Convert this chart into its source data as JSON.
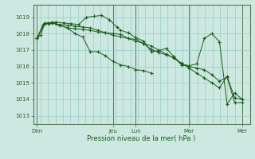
{
  "background_color": "#cce8e0",
  "grid_color": "#99cccc",
  "line_color": "#1a5c1a",
  "title": "Pression niveau de la mer( hPa )",
  "ylim": [
    1012.5,
    1019.75
  ],
  "yticks": [
    1013,
    1014,
    1015,
    1016,
    1017,
    1018,
    1019
  ],
  "xtick_labels": [
    "Dim",
    "Jeu",
    "Lun",
    "Mar",
    "Mer"
  ],
  "xtick_positions": [
    0,
    10,
    13,
    20,
    27
  ],
  "day_lines_x": [
    0,
    10,
    13,
    20,
    27
  ],
  "series": [
    {
      "x": [
        0,
        0.5,
        1,
        1.5,
        2,
        2.5,
        3,
        4,
        5,
        6,
        7,
        8,
        9,
        10,
        11,
        12,
        13,
        14,
        15,
        16,
        17,
        18,
        19,
        20,
        21,
        22,
        23,
        24,
        25,
        26,
        27
      ],
      "y": [
        1017.7,
        1017.9,
        1018.6,
        1018.6,
        1018.7,
        1018.6,
        1018.55,
        1018.5,
        1018.45,
        1018.4,
        1018.35,
        1018.2,
        1018.05,
        1017.9,
        1017.8,
        1017.7,
        1017.55,
        1017.4,
        1017.25,
        1017.0,
        1016.75,
        1016.5,
        1016.2,
        1015.9,
        1015.6,
        1015.3,
        1015.0,
        1014.7,
        1015.4,
        1014.1,
        1014.0
      ]
    },
    {
      "x": [
        0,
        0.8,
        1.5,
        2.5,
        3.5,
        4.5,
        5.5,
        6.5,
        7.5,
        8.5,
        9.5,
        10.5,
        11,
        12,
        13,
        14,
        15,
        16,
        17,
        18,
        19,
        20,
        21,
        22,
        23,
        24,
        25,
        26,
        27
      ],
      "y": [
        1017.7,
        1018.55,
        1018.65,
        1018.7,
        1018.65,
        1018.6,
        1018.55,
        1019.0,
        1019.05,
        1019.1,
        1018.85,
        1018.4,
        1018.2,
        1018.05,
        1017.75,
        1017.55,
        1016.9,
        1016.95,
        1017.1,
        1016.6,
        1016.15,
        1016.05,
        1016.15,
        1017.7,
        1018.0,
        1017.5,
        1013.7,
        1014.4,
        1014.0
      ]
    },
    {
      "x": [
        0,
        1,
        2,
        3,
        4,
        5,
        6,
        7,
        8,
        9,
        10,
        11,
        12,
        13,
        14,
        15
      ],
      "y": [
        1017.7,
        1018.65,
        1018.65,
        1018.5,
        1018.35,
        1018.0,
        1017.8,
        1016.9,
        1016.9,
        1016.65,
        1016.3,
        1016.1,
        1016.0,
        1015.8,
        1015.75,
        1015.6
      ]
    },
    {
      "x": [
        0,
        1,
        2,
        3,
        4,
        5,
        6,
        7,
        8,
        9,
        10,
        11,
        12,
        13,
        14,
        15,
        16,
        17,
        18,
        19,
        20,
        21,
        22,
        23,
        24,
        25,
        26,
        27
      ],
      "y": [
        1017.7,
        1018.6,
        1018.65,
        1018.5,
        1018.35,
        1018.3,
        1018.25,
        1018.2,
        1018.1,
        1018.05,
        1018.0,
        1017.95,
        1017.7,
        1017.65,
        1017.4,
        1017.05,
        1016.85,
        1016.7,
        1016.55,
        1016.1,
        1016.0,
        1015.9,
        1015.8,
        1015.5,
        1015.1,
        1015.35,
        1013.8,
        1013.8
      ]
    }
  ]
}
